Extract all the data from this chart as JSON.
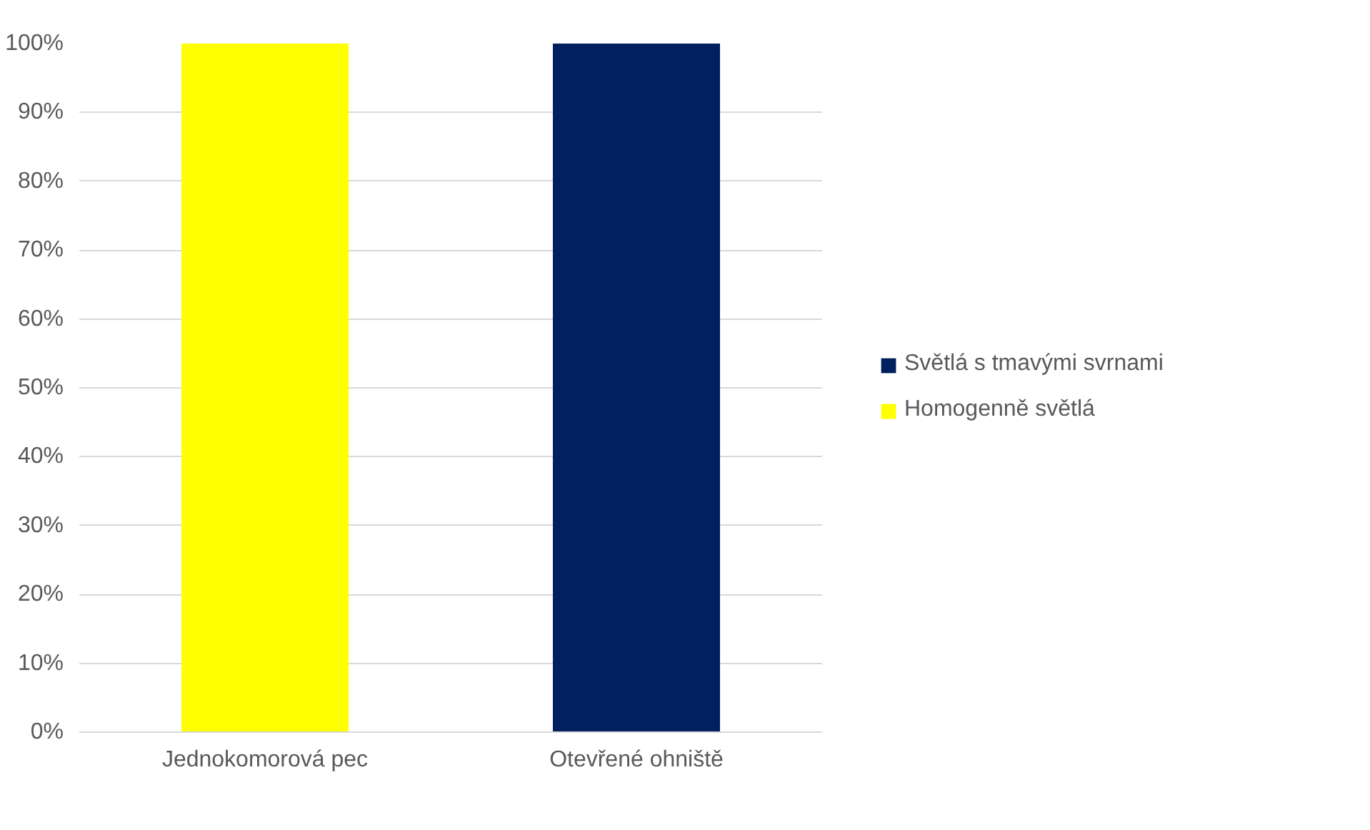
{
  "chart_data": {
    "type": "bar",
    "stacked": true,
    "categories": [
      "Jednokomorová pec",
      "Otevřené ohniště"
    ],
    "series": [
      {
        "name": "Homogenně světlá",
        "color": "#ffff00",
        "values": [
          100,
          0
        ]
      },
      {
        "name": "Světlá s tmavými svrnami",
        "color": "#002060",
        "values": [
          0,
          100
        ]
      }
    ],
    "ylim": [
      0,
      100
    ],
    "yticks": [
      {
        "value": 0,
        "label": "0%"
      },
      {
        "value": 10,
        "label": "10%"
      },
      {
        "value": 20,
        "label": "20%"
      },
      {
        "value": 30,
        "label": "30%"
      },
      {
        "value": 40,
        "label": "40%"
      },
      {
        "value": 50,
        "label": "50%"
      },
      {
        "value": 60,
        "label": "60%"
      },
      {
        "value": 70,
        "label": "70%"
      },
      {
        "value": 80,
        "label": "80%"
      },
      {
        "value": 90,
        "label": "90%"
      },
      {
        "value": 100,
        "label": "100%"
      }
    ],
    "grid": "y",
    "legend": "right"
  }
}
